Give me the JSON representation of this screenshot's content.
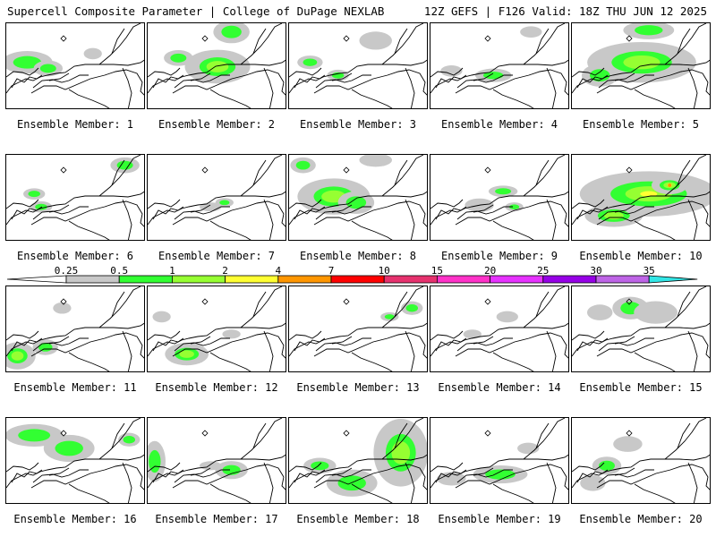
{
  "header": {
    "left": "Supercell Composite Parameter | College of DuPage NEXLAB",
    "right": "12Z GEFS | F126 Valid: 18Z THU JUN 12 2025"
  },
  "colorbar": {
    "labels": [
      "0.25",
      "0.5",
      "1",
      "2",
      "4",
      "7",
      "10",
      "15",
      "20",
      "25",
      "30",
      "35"
    ],
    "colors": [
      "#c8c8c8",
      "#32ff32",
      "#96ff32",
      "#ffff32",
      "#ff9600",
      "#ff0000",
      "#e6326e",
      "#ff32c8",
      "#e632ff",
      "#9600e6",
      "#be64e6",
      "#32e6e6"
    ]
  },
  "members": [
    {
      "label": "Ensemble Member: 1",
      "blobs": [
        [
          0.15,
          0.45,
          0.14,
          0.1,
          1
        ],
        [
          0.3,
          0.52,
          0.08,
          0.07,
          1
        ],
        [
          0.62,
          0.35,
          0.05,
          0.05,
          0
        ]
      ]
    },
    {
      "label": "Ensemble Member: 2",
      "blobs": [
        [
          0.6,
          0.1,
          0.1,
          0.1,
          1
        ],
        [
          0.5,
          0.5,
          0.18,
          0.15,
          2
        ],
        [
          0.22,
          0.4,
          0.08,
          0.07,
          1
        ]
      ]
    },
    {
      "label": "Ensemble Member: 3",
      "blobs": [
        [
          0.15,
          0.45,
          0.07,
          0.06,
          1
        ],
        [
          0.62,
          0.2,
          0.09,
          0.08,
          0
        ],
        [
          0.35,
          0.6,
          0.06,
          0.05,
          1
        ]
      ]
    },
    {
      "label": "Ensemble Member: 4",
      "blobs": [
        [
          0.45,
          0.6,
          0.1,
          0.06,
          1
        ],
        [
          0.72,
          0.1,
          0.06,
          0.05,
          0
        ],
        [
          0.15,
          0.55,
          0.06,
          0.05,
          0
        ]
      ]
    },
    {
      "label": "Ensemble Member: 5",
      "blobs": [
        [
          0.5,
          0.45,
          0.3,
          0.18,
          2
        ],
        [
          0.55,
          0.08,
          0.14,
          0.08,
          1
        ],
        [
          0.2,
          0.6,
          0.1,
          0.1,
          1
        ]
      ]
    },
    {
      "label": "Ensemble Member: 6",
      "blobs": [
        [
          0.2,
          0.45,
          0.06,
          0.05,
          1
        ],
        [
          0.85,
          0.12,
          0.08,
          0.07,
          1
        ],
        [
          0.25,
          0.6,
          0.06,
          0.05,
          1
        ]
      ]
    },
    {
      "label": "Ensemble Member: 7",
      "blobs": [
        [
          0.55,
          0.55,
          0.05,
          0.04,
          1
        ],
        [
          0.45,
          0.6,
          0.06,
          0.04,
          0
        ]
      ]
    },
    {
      "label": "Ensemble Member: 8",
      "blobs": [
        [
          0.32,
          0.48,
          0.2,
          0.16,
          2
        ],
        [
          0.1,
          0.12,
          0.07,
          0.07,
          1
        ],
        [
          0.62,
          0.06,
          0.09,
          0.06,
          0
        ],
        [
          0.48,
          0.55,
          0.1,
          0.1,
          1
        ]
      ]
    },
    {
      "label": "Ensemble Member: 9",
      "blobs": [
        [
          0.52,
          0.42,
          0.08,
          0.05,
          1
        ],
        [
          0.35,
          0.58,
          0.08,
          0.06,
          0
        ],
        [
          0.6,
          0.6,
          0.05,
          0.04,
          1
        ]
      ]
    },
    {
      "label": "Ensemble Member: 10",
      "blobs": [
        [
          0.55,
          0.45,
          0.38,
          0.2,
          3
        ],
        [
          0.3,
          0.7,
          0.16,
          0.1,
          2
        ],
        [
          0.7,
          0.35,
          0.1,
          0.08,
          4
        ]
      ]
    },
    {
      "label": "Ensemble Member: 11",
      "blobs": [
        [
          0.08,
          0.8,
          0.1,
          0.12,
          2
        ],
        [
          0.28,
          0.7,
          0.07,
          0.07,
          1
        ],
        [
          0.4,
          0.25,
          0.05,
          0.05,
          0
        ]
      ]
    },
    {
      "label": "Ensemble Member: 12",
      "blobs": [
        [
          0.28,
          0.78,
          0.12,
          0.1,
          2
        ],
        [
          0.1,
          0.35,
          0.05,
          0.05,
          0
        ],
        [
          0.6,
          0.55,
          0.05,
          0.04,
          0
        ]
      ]
    },
    {
      "label": "Ensemble Member: 13",
      "blobs": [
        [
          0.88,
          0.25,
          0.06,
          0.06,
          1
        ],
        [
          0.72,
          0.35,
          0.05,
          0.04,
          1
        ]
      ]
    },
    {
      "label": "Ensemble Member: 14",
      "blobs": [
        [
          0.55,
          0.35,
          0.06,
          0.05,
          0
        ],
        [
          0.3,
          0.55,
          0.05,
          0.04,
          0
        ]
      ]
    },
    {
      "label": "Ensemble Member: 15",
      "blobs": [
        [
          0.42,
          0.25,
          0.1,
          0.1,
          1
        ],
        [
          0.2,
          0.3,
          0.07,
          0.07,
          0
        ],
        [
          0.6,
          0.3,
          0.12,
          0.1,
          0
        ]
      ]
    },
    {
      "label": "Ensemble Member: 16",
      "blobs": [
        [
          0.2,
          0.2,
          0.16,
          0.1,
          1
        ],
        [
          0.45,
          0.35,
          0.14,
          0.12,
          1
        ],
        [
          0.88,
          0.25,
          0.06,
          0.06,
          1
        ]
      ]
    },
    {
      "label": "Ensemble Member: 17",
      "blobs": [
        [
          0.6,
          0.6,
          0.09,
          0.08,
          1
        ],
        [
          0.05,
          0.5,
          0.06,
          0.18,
          1
        ],
        [
          0.45,
          0.55,
          0.06,
          0.04,
          0
        ]
      ]
    },
    {
      "label": "Ensemble Member: 18",
      "blobs": [
        [
          0.8,
          0.4,
          0.15,
          0.3,
          2
        ],
        [
          0.45,
          0.75,
          0.14,
          0.12,
          1
        ],
        [
          0.22,
          0.55,
          0.09,
          0.07,
          1
        ]
      ]
    },
    {
      "label": "Ensemble Member: 19",
      "blobs": [
        [
          0.5,
          0.65,
          0.15,
          0.08,
          1
        ],
        [
          0.15,
          0.7,
          0.08,
          0.06,
          0
        ],
        [
          0.7,
          0.35,
          0.06,
          0.05,
          0
        ]
      ]
    },
    {
      "label": "Ensemble Member: 20",
      "blobs": [
        [
          0.25,
          0.55,
          0.08,
          0.08,
          1
        ],
        [
          0.4,
          0.3,
          0.08,
          0.07,
          0
        ],
        [
          0.15,
          0.75,
          0.07,
          0.07,
          0
        ]
      ]
    }
  ]
}
